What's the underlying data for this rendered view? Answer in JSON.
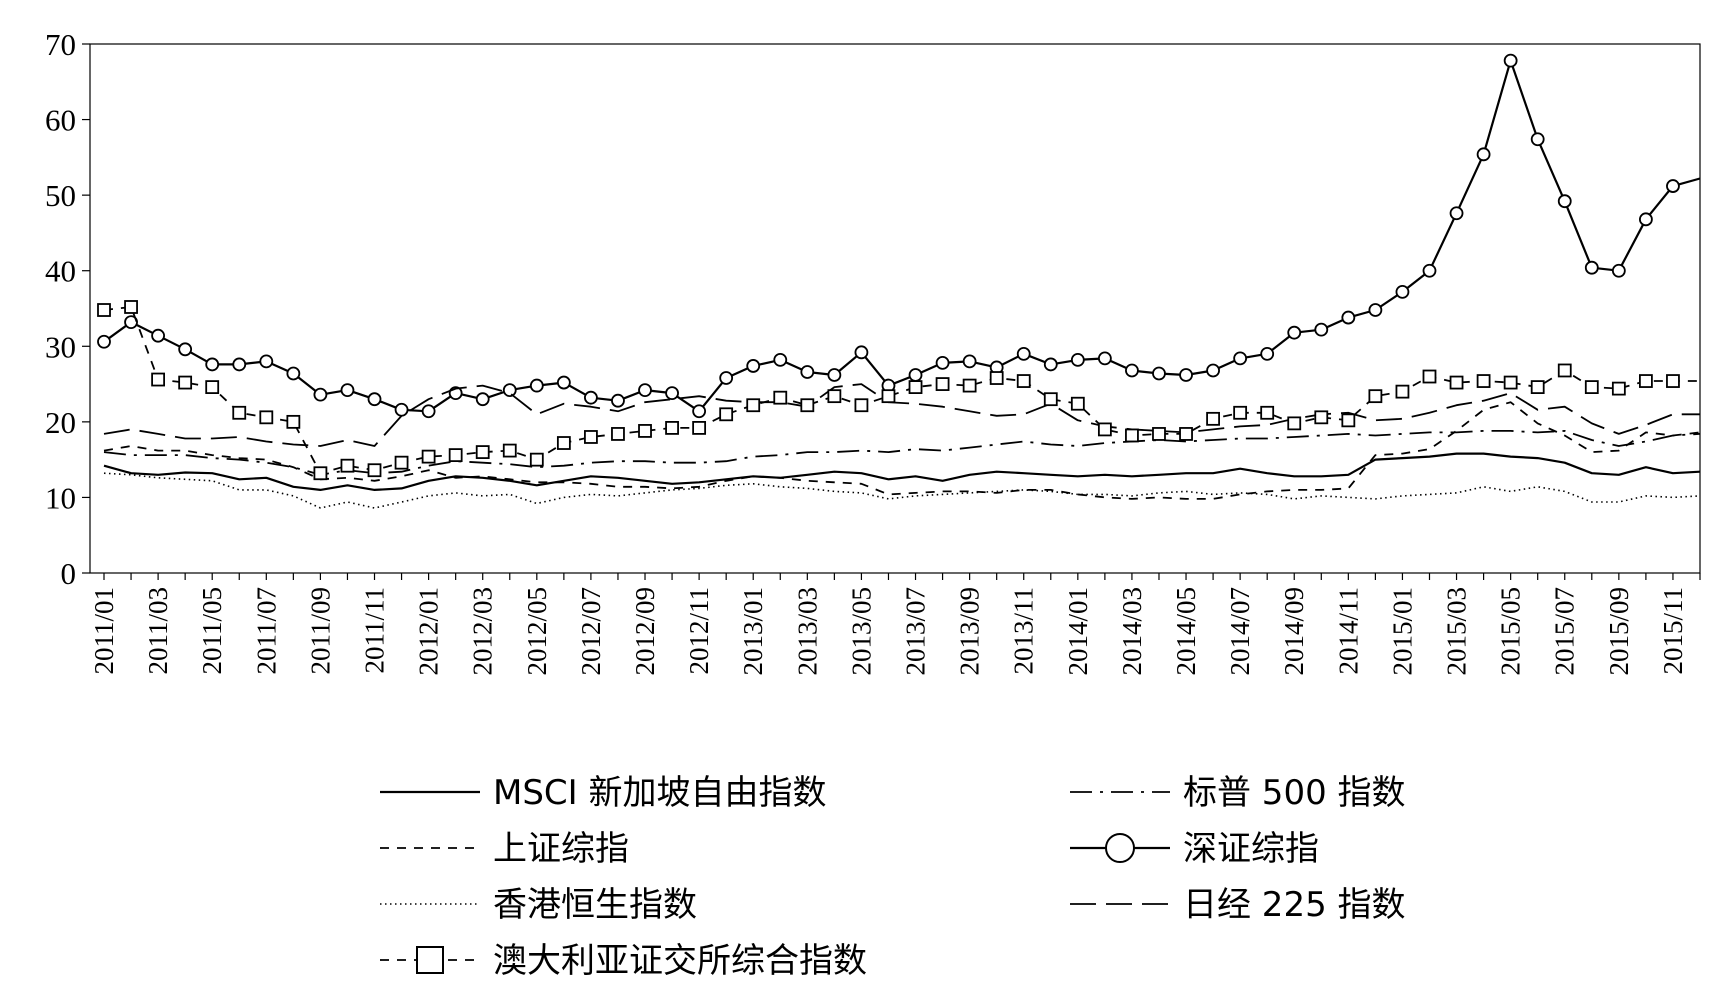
{
  "chart_data": {
    "type": "line",
    "title": "",
    "xlabel": "",
    "ylabel": "",
    "ylim": [
      0,
      70
    ],
    "yticks": [
      0,
      10,
      20,
      30,
      40,
      50,
      60,
      70
    ],
    "grid": false,
    "legend_placement": "bottom",
    "x": [
      "2011/01",
      "2011/02",
      "2011/03",
      "2011/04",
      "2011/05",
      "2011/06",
      "2011/07",
      "2011/08",
      "2011/09",
      "2011/10",
      "2011/11",
      "2011/12",
      "2012/01",
      "2012/02",
      "2012/03",
      "2012/04",
      "2012/05",
      "2012/06",
      "2012/07",
      "2012/08",
      "2012/09",
      "2012/10",
      "2012/11",
      "2012/12",
      "2013/01",
      "2013/02",
      "2013/03",
      "2013/04",
      "2013/05",
      "2013/06",
      "2013/07",
      "2013/08",
      "2013/09",
      "2013/10",
      "2013/11",
      "2013/12",
      "2014/01",
      "2014/02",
      "2014/03",
      "2014/04",
      "2014/05",
      "2014/06",
      "2014/07",
      "2014/08",
      "2014/09",
      "2014/10",
      "2014/11",
      "2014/12",
      "2015/01",
      "2015/02",
      "2015/03",
      "2015/04",
      "2015/05",
      "2015/06",
      "2015/07",
      "2015/08",
      "2015/09",
      "2015/10",
      "2015/11",
      "2015/12"
    ],
    "x_tick_labels": [
      "2011/01",
      "2011/03",
      "2011/05",
      "2011/07",
      "2011/09",
      "2011/11",
      "2012/01",
      "2012/03",
      "2012/05",
      "2012/07",
      "2012/09",
      "2012/11",
      "2013/01",
      "2013/03",
      "2013/05",
      "2013/07",
      "2013/09",
      "2013/11",
      "2014/01",
      "2014/03",
      "2014/05",
      "2014/07",
      "2014/09",
      "2014/11",
      "2015/01",
      "2015/03",
      "2015/05",
      "2015/07",
      "2015/09",
      "2015/11"
    ],
    "series": [
      {
        "name": "MSCI 新加坡自由指数",
        "style": "solid",
        "values": [
          14.2,
          13.2,
          13.0,
          13.3,
          13.2,
          12.4,
          12.6,
          11.4,
          11.0,
          11.6,
          11.0,
          11.2,
          12.2,
          12.8,
          12.6,
          12.2,
          11.6,
          12.2,
          12.8,
          12.6,
          12.2,
          11.8,
          12.0,
          12.4,
          12.8,
          12.6,
          13.0,
          13.4,
          13.2,
          12.4,
          12.8,
          12.2,
          13.0,
          13.4,
          13.2,
          13.0,
          12.8,
          13.0,
          12.8,
          13.0,
          13.2,
          13.2,
          13.8,
          13.2,
          12.8,
          12.8,
          13.0,
          15.0,
          15.2,
          15.4,
          15.8,
          15.8,
          15.4,
          15.2,
          14.6,
          13.2,
          13.0,
          14.0,
          13.2,
          13.4
        ]
      },
      {
        "name": "标普 500 指数",
        "style": "dash-dot",
        "values": [
          16.0,
          15.6,
          15.6,
          15.6,
          15.2,
          15.0,
          14.6,
          14.0,
          13.0,
          13.6,
          13.2,
          13.4,
          14.2,
          14.8,
          14.6,
          14.4,
          14.0,
          14.2,
          14.6,
          14.8,
          14.8,
          14.6,
          14.6,
          14.8,
          15.4,
          15.6,
          16.0,
          16.0,
          16.2,
          16.0,
          16.4,
          16.2,
          16.6,
          17.0,
          17.4,
          17.0,
          16.8,
          17.2,
          17.4,
          17.6,
          17.4,
          17.6,
          17.8,
          17.8,
          18.0,
          18.2,
          18.4,
          18.2,
          18.4,
          18.6,
          18.6,
          18.8,
          18.8,
          18.6,
          18.8,
          17.6,
          16.8,
          17.4,
          18.2,
          18.4
        ]
      },
      {
        "name": "上证综指",
        "style": "dashed",
        "values": [
          16.2,
          16.8,
          16.2,
          16.2,
          15.6,
          15.2,
          15.0,
          14.0,
          12.4,
          12.6,
          12.2,
          12.8,
          13.6,
          12.6,
          12.8,
          12.4,
          12.0,
          12.0,
          11.8,
          11.4,
          11.4,
          11.2,
          11.4,
          12.2,
          12.8,
          12.6,
          12.2,
          12.0,
          11.8,
          10.4,
          10.6,
          10.8,
          10.8,
          10.6,
          11.0,
          11.0,
          10.4,
          10.0,
          9.8,
          10.0,
          9.8,
          9.8,
          10.4,
          10.8,
          11.0,
          11.0,
          11.2,
          15.6,
          15.8,
          16.4,
          18.8,
          21.6,
          22.6,
          19.8,
          18.2,
          16.0,
          16.2,
          18.6,
          18.2,
          18.6
        ]
      },
      {
        "name": "深证综指",
        "style": "circle-marker",
        "values": [
          30.6,
          33.2,
          31.4,
          29.6,
          27.6,
          27.6,
          28.0,
          26.4,
          23.6,
          24.2,
          23.0,
          21.6,
          21.4,
          23.8,
          23.0,
          24.2,
          24.8,
          25.2,
          23.2,
          22.8,
          24.2,
          23.8,
          21.4,
          25.8,
          27.4,
          28.2,
          26.6,
          26.2,
          29.2,
          24.8,
          26.2,
          27.8,
          28.0,
          27.2,
          29.0,
          27.6,
          28.2,
          28.4,
          26.8,
          26.4,
          26.2,
          26.8,
          28.4,
          29.0,
          31.8,
          32.2,
          33.8,
          34.8,
          37.2,
          40.0,
          47.6,
          55.4,
          67.8,
          57.4,
          49.2,
          40.4,
          40.0,
          46.8,
          51.2,
          52.2
        ]
      },
      {
        "name": "香港恒生指数",
        "style": "dotted",
        "values": [
          13.2,
          13.0,
          12.6,
          12.4,
          12.2,
          11.0,
          11.0,
          10.2,
          8.6,
          9.4,
          8.6,
          9.4,
          10.2,
          10.6,
          10.2,
          10.4,
          9.2,
          10.0,
          10.4,
          10.2,
          10.6,
          11.0,
          11.2,
          11.6,
          11.8,
          11.4,
          11.2,
          10.8,
          10.6,
          9.8,
          10.2,
          10.4,
          10.6,
          10.8,
          11.0,
          10.8,
          10.4,
          10.4,
          10.2,
          10.6,
          10.8,
          10.4,
          10.6,
          10.4,
          9.8,
          10.2,
          10.0,
          9.8,
          10.2,
          10.4,
          10.6,
          11.4,
          10.8,
          11.4,
          10.8,
          9.4,
          9.4,
          10.2,
          10.0,
          10.2
        ]
      },
      {
        "name": "日经 225 指数",
        "style": "long-dash",
        "values": [
          18.4,
          19.0,
          18.4,
          17.8,
          17.8,
          18.0,
          17.4,
          17.0,
          16.8,
          17.6,
          16.8,
          20.8,
          23.0,
          24.4,
          24.8,
          23.8,
          21.0,
          22.4,
          22.0,
          21.4,
          22.6,
          23.0,
          23.4,
          22.8,
          22.6,
          22.6,
          22.0,
          24.6,
          25.0,
          22.6,
          22.4,
          22.0,
          21.4,
          20.8,
          21.0,
          22.4,
          20.2,
          19.4,
          19.0,
          18.8,
          18.6,
          19.0,
          19.4,
          19.6,
          20.4,
          21.0,
          21.2,
          20.2,
          20.4,
          21.2,
          22.2,
          22.8,
          23.8,
          21.6,
          22.0,
          19.8,
          18.4,
          19.6,
          21.0,
          21.0
        ]
      },
      {
        "name": "澳大利亚证交所综合指数",
        "style": "square-marker",
        "values": [
          34.8,
          35.2,
          25.6,
          25.2,
          24.6,
          21.2,
          20.6,
          20.0,
          13.2,
          14.2,
          13.6,
          14.6,
          15.4,
          15.6,
          16.0,
          16.2,
          15.0,
          17.2,
          18.0,
          18.4,
          18.8,
          19.2,
          19.2,
          21.0,
          22.2,
          23.2,
          22.2,
          23.4,
          22.2,
          23.4,
          24.6,
          25.0,
          24.8,
          25.8,
          25.4,
          23.0,
          22.4,
          19.0,
          18.2,
          18.4,
          18.4,
          20.4,
          21.2,
          21.2,
          19.8,
          20.6,
          20.2,
          23.4,
          24.0,
          26.0,
          25.2,
          25.4,
          25.2,
          24.6,
          26.8,
          24.6,
          24.4,
          25.4,
          25.4,
          25.4
        ]
      }
    ]
  }
}
